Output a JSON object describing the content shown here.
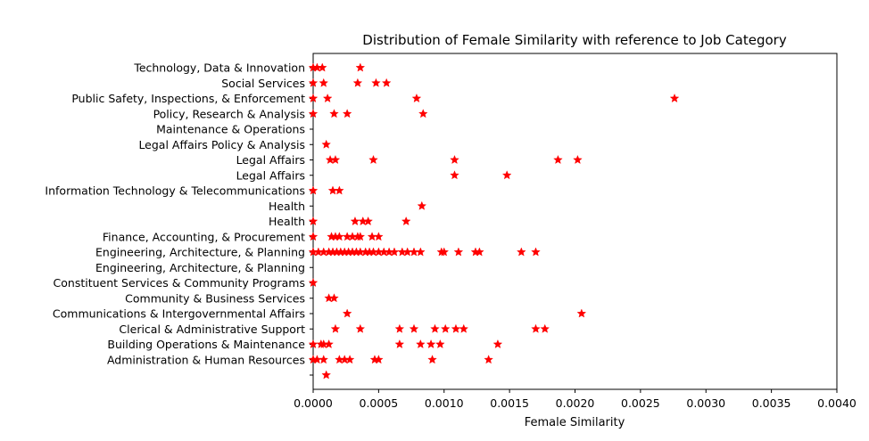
{
  "chart_data": {
    "type": "scatter",
    "title": "Distribution of Female Similarity with reference to Job Category",
    "xlabel": "Female Similarity",
    "ylabel": "",
    "xlim": [
      0.0,
      0.004
    ],
    "x_ticks": [
      "0.0000",
      "0.0005",
      "0.0010",
      "0.0015",
      "0.0020",
      "0.0025",
      "0.0030",
      "0.0035",
      "0.0040"
    ],
    "categories": [
      "",
      "Administration & Human Resources",
      "Building Operations & Maintenance",
      "Clerical & Administrative Support",
      "Communications & Intergovernmental Affairs",
      "Community & Business Services",
      "Constituent Services & Community Programs",
      "Engineering, Architecture, & Planning",
      "Engineering, Architecture, & Planning ",
      "Finance, Accounting, & Procurement",
      "Health",
      "Health ",
      "Information Technology & Telecommunications",
      "Legal Affairs",
      "Legal Affairs ",
      "Legal Affairs Policy & Analysis",
      "Maintenance & Operations",
      "Policy, Research & Analysis",
      "Public Safety, Inspections, & Enforcement",
      "Social Services",
      "Technology, Data & Innovation"
    ],
    "marker": "star",
    "marker_color": "#ff0000",
    "grid": false,
    "legend": "none",
    "series": [
      {
        "values": [
          {
            "category": "",
            "x": [
              0.0001
            ]
          },
          {
            "category": "Administration & Human Resources",
            "x": [
              0.0,
              3e-05,
              8e-05,
              0.0002,
              0.00024,
              0.00028,
              0.00047,
              0.0005,
              0.00091,
              0.00134
            ]
          },
          {
            "category": "Building Operations & Maintenance",
            "x": [
              0.0,
              6e-05,
              8e-05,
              0.00012,
              0.00066,
              0.00082,
              0.0009,
              0.00097,
              0.00141
            ]
          },
          {
            "category": "Clerical & Administrative Support",
            "x": [
              0.00017,
              0.00036,
              0.00066,
              0.00077,
              0.00093,
              0.00101,
              0.00109,
              0.00115,
              0.0017,
              0.00177
            ]
          },
          {
            "category": "Communications & Intergovernmental Affairs",
            "x": [
              0.00026,
              0.00205
            ]
          },
          {
            "category": "Community & Business Services",
            "x": [
              0.00012,
              0.00016
            ]
          },
          {
            "category": "Constituent Services & Community Programs",
            "x": [
              0.0
            ]
          },
          {
            "category": "Engineering, Architecture, & Planning",
            "x": []
          },
          {
            "category": "Engineering, Architecture, & Planning ",
            "x": [
              0.0,
              4e-05,
              8e-05,
              0.00012,
              0.00015,
              0.00018,
              0.00021,
              0.00024,
              0.00027,
              0.0003,
              0.00033,
              0.00036,
              0.0004,
              0.00043,
              0.00046,
              0.0005,
              0.00054,
              0.00058,
              0.00062,
              0.00068,
              0.00072,
              0.00077,
              0.00082,
              0.00098,
              0.001,
              0.00111,
              0.00124,
              0.00127,
              0.00159,
              0.0017
            ]
          },
          {
            "category": "Finance, Accounting, & Procurement",
            "x": [
              0.0,
              0.00014,
              0.00017,
              0.0002,
              0.00026,
              0.0003,
              0.00034,
              0.00036,
              0.00045,
              0.0005
            ]
          },
          {
            "category": "Health",
            "x": [
              0.0,
              0.00032,
              0.00038,
              0.00042,
              0.00071
            ]
          },
          {
            "category": "Health ",
            "x": [
              0.00083
            ]
          },
          {
            "category": "Information Technology & Telecommunications",
            "x": [
              0.0,
              0.00015,
              0.0002
            ]
          },
          {
            "category": "Legal Affairs",
            "x": [
              0.00108,
              0.00148
            ]
          },
          {
            "category": "Legal Affairs ",
            "x": [
              0.00013,
              0.00017,
              0.00046,
              0.00108,
              0.00187,
              0.00202
            ]
          },
          {
            "category": "Legal Affairs Policy & Analysis",
            "x": [
              0.0001
            ]
          },
          {
            "category": "Maintenance & Operations",
            "x": []
          },
          {
            "category": "Policy, Research & Analysis",
            "x": [
              0.0,
              0.00016,
              0.00026,
              0.00084
            ]
          },
          {
            "category": "Public Safety, Inspections, & Enforcement",
            "x": [
              0.0,
              0.00011,
              0.00079,
              0.00276
            ]
          },
          {
            "category": "Social Services",
            "x": [
              0.0,
              8e-05,
              0.00034,
              0.00048,
              0.00056
            ]
          },
          {
            "category": "Technology, Data & Innovation",
            "x": [
              0.0,
              3e-05,
              7e-05,
              0.00036
            ]
          }
        ]
      }
    ]
  }
}
